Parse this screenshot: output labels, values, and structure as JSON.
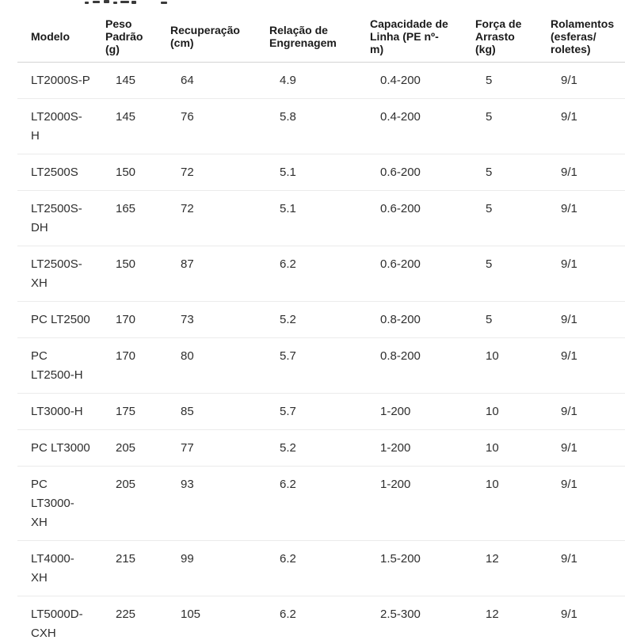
{
  "chart_data": {
    "type": "table",
    "title": "",
    "columns": [
      "Modelo",
      "Peso Padrão (g)",
      "Recuperação (cm)",
      "Relação de Engrenagem",
      "Capacidade de Linha (PE nº-m)",
      "Força de Arrasto (kg)",
      "Rolamentos (esferas/roletes)"
    ],
    "rows": [
      [
        "LT2000S-P",
        "145",
        "64",
        "4.9",
        "0.4-200",
        "5",
        "9/1"
      ],
      [
        "LT2000S-H",
        "145",
        "76",
        "5.8",
        "0.4-200",
        "5",
        "9/1"
      ],
      [
        "LT2500S",
        "150",
        "72",
        "5.1",
        "0.6-200",
        "5",
        "9/1"
      ],
      [
        "LT2500S-DH",
        "165",
        "72",
        "5.1",
        "0.6-200",
        "5",
        "9/1"
      ],
      [
        "LT2500S-XH",
        "150",
        "87",
        "6.2",
        "0.6-200",
        "5",
        "9/1"
      ],
      [
        "PC LT2500",
        "170",
        "73",
        "5.2",
        "0.8-200",
        "5",
        "9/1"
      ],
      [
        "PC LT2500-H",
        "170",
        "80",
        "5.7",
        "0.8-200",
        "10",
        "9/1"
      ],
      [
        "LT3000-H",
        "175",
        "85",
        "5.7",
        "1-200",
        "10",
        "9/1"
      ],
      [
        "PC LT3000",
        "205",
        "77",
        "5.2",
        "1-200",
        "10",
        "9/1"
      ],
      [
        "PC LT3000-XH",
        "205",
        "93",
        "6.2",
        "1-200",
        "10",
        "9/1"
      ],
      [
        "LT4000-XH",
        "215",
        "99",
        "6.2",
        "1.5-200",
        "12",
        "9/1"
      ],
      [
        "LT5000D-CXH",
        "225",
        "105",
        "6.2",
        "2.5-300",
        "12",
        "9/1"
      ]
    ],
    "layout": {
      "grid": "horizontal-row-separators-only",
      "header_rule_color": "#d4d4d4",
      "row_rule_color": "#ebebeb"
    }
  },
  "table_display": {
    "header_lines": [
      "Modelo",
      "Peso\nPadrão\n(g)",
      "Recuperação\n(cm)",
      "Relação de\nEngrenagem",
      "Capacidade de\nLinha (PE nº-\nm)",
      "Força de\nArrasto\n(kg)",
      "Rolamentos\n(esferas/\nroletes)"
    ],
    "model_lines": [
      "LT2000S-P",
      "LT2000S-\nH",
      "LT2500S",
      "LT2500S-\nDH",
      "LT2500S-\nXH",
      "PC LT2500",
      "PC\nLT2500-H",
      "LT3000-H",
      "PC LT3000",
      "PC\nLT3000-\nXH",
      "LT4000-\nXH",
      "LT5000D-\nCXH"
    ]
  },
  "colors": {
    "background": "#ffffff",
    "header_text": "#1b1b1b",
    "cell_text": "#2e2e2e",
    "header_border": "#d4d4d4",
    "row_border": "#ebebeb"
  }
}
